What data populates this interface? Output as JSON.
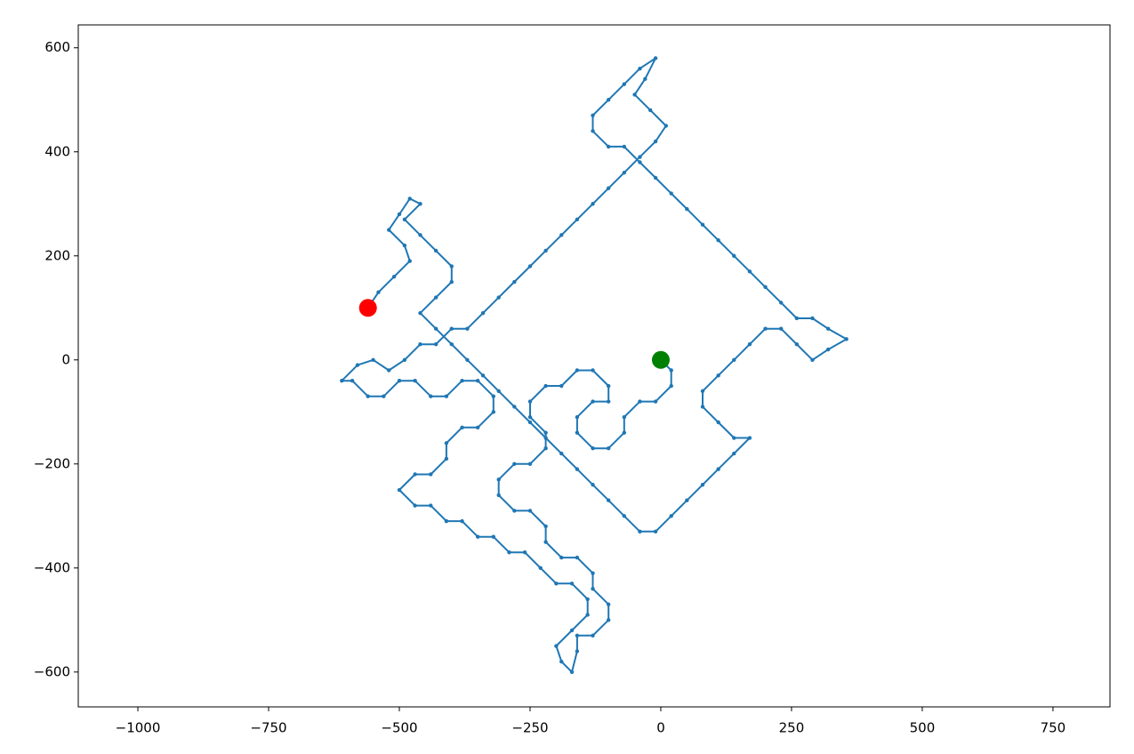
{
  "chart_data": {
    "type": "line",
    "xlim": [
      -1114,
      859
    ],
    "ylim": [
      -667,
      644
    ],
    "xticks": [
      {
        "value": -1000,
        "label": "−1000"
      },
      {
        "value": -750,
        "label": "−750"
      },
      {
        "value": -500,
        "label": "−500"
      },
      {
        "value": -250,
        "label": "−250"
      },
      0,
      250,
      500,
      750
    ],
    "yticks": [
      {
        "value": -600,
        "label": "−600"
      },
      {
        "value": -400,
        "label": "−400"
      },
      {
        "value": -200,
        "label": "−200"
      },
      0,
      200,
      400,
      600
    ],
    "grid": false,
    "series": [
      {
        "mode": "line+markers",
        "color": "#1f77b4",
        "x": [
          0,
          20,
          20,
          -10,
          -40,
          -70,
          -70,
          -100,
          -130,
          -160,
          -160,
          -130,
          -100,
          -100,
          -130,
          -160,
          -190,
          -220,
          -250,
          -250,
          -220,
          -220,
          -250,
          -280,
          -310,
          -310,
          -280,
          -250,
          -220,
          -220,
          -190,
          -160,
          -130,
          -130,
          -100,
          -100,
          -130,
          -160,
          -160,
          -170,
          -190,
          -200,
          -170,
          -140,
          -140,
          -170,
          -200,
          -230,
          -260,
          -290,
          -320,
          -350,
          -380,
          -410,
          -440,
          -470,
          -500,
          -470,
          -440,
          -410,
          -410,
          -380,
          -350,
          -320,
          -320,
          -350,
          -380,
          -410,
          -440,
          -470,
          -500,
          -530,
          -560,
          -590,
          -610,
          -580,
          -550,
          -520,
          -490,
          -460,
          -430,
          -400,
          -370,
          -340,
          -310,
          -280,
          -250,
          -220,
          -190,
          -160,
          -130,
          -100,
          -70,
          -40,
          -10,
          10,
          -20,
          -50,
          -30,
          -10,
          -40,
          -70,
          -100,
          -130,
          -130,
          -100,
          -70,
          -40,
          -10,
          20,
          50,
          80,
          110,
          140,
          170,
          200,
          230,
          260,
          290,
          320,
          355,
          320,
          290,
          260,
          230,
          200,
          170,
          140,
          110,
          80,
          80,
          110,
          140,
          170,
          140,
          110,
          80,
          50,
          20,
          -10,
          -40,
          -70,
          -100,
          -130,
          -160,
          -190,
          -220,
          -250,
          -280,
          -310,
          -340,
          -370,
          -400,
          -430,
          -460,
          -430,
          -400,
          -400,
          -430,
          -460,
          -490,
          -460,
          -480,
          -500,
          -520,
          -490,
          -480,
          -510,
          -540,
          -560
        ],
        "values": [
          0,
          -20,
          -50,
          -80,
          -80,
          -110,
          -140,
          -170,
          -170,
          -140,
          -110,
          -80,
          -80,
          -50,
          -20,
          -20,
          -50,
          -50,
          -80,
          -110,
          -140,
          -170,
          -200,
          -200,
          -230,
          -260,
          -290,
          -290,
          -320,
          -350,
          -380,
          -380,
          -410,
          -440,
          -470,
          -500,
          -530,
          -530,
          -560,
          -600,
          -580,
          -550,
          -520,
          -490,
          -460,
          -430,
          -430,
          -400,
          -370,
          -370,
          -340,
          -340,
          -310,
          -310,
          -280,
          -280,
          -250,
          -220,
          -220,
          -190,
          -160,
          -130,
          -130,
          -100,
          -70,
          -40,
          -40,
          -70,
          -70,
          -40,
          -40,
          -70,
          -70,
          -40,
          -40,
          -10,
          0,
          -20,
          0,
          30,
          30,
          60,
          60,
          90,
          120,
          150,
          180,
          210,
          240,
          270,
          300,
          330,
          360,
          390,
          420,
          450,
          480,
          510,
          540,
          580,
          560,
          530,
          500,
          470,
          440,
          410,
          410,
          380,
          350,
          320,
          290,
          260,
          230,
          200,
          170,
          140,
          110,
          80,
          80,
          60,
          40,
          20,
          0,
          30,
          60,
          60,
          30,
          0,
          -30,
          -60,
          -90,
          -120,
          -150,
          -150,
          -180,
          -210,
          -240,
          -270,
          -300,
          -330,
          -330,
          -300,
          -270,
          -240,
          -210,
          -180,
          -150,
          -120,
          -90,
          -60,
          -30,
          0,
          30,
          60,
          90,
          120,
          150,
          180,
          210,
          240,
          270,
          300,
          310,
          280,
          250,
          220,
          190,
          160,
          130,
          100
        ]
      },
      {
        "mode": "marker",
        "color": "#008000",
        "x": [
          0
        ],
        "values": [
          0
        ]
      },
      {
        "mode": "marker",
        "color": "#ff0000",
        "x": [
          -560
        ],
        "values": [
          100
        ]
      }
    ]
  }
}
